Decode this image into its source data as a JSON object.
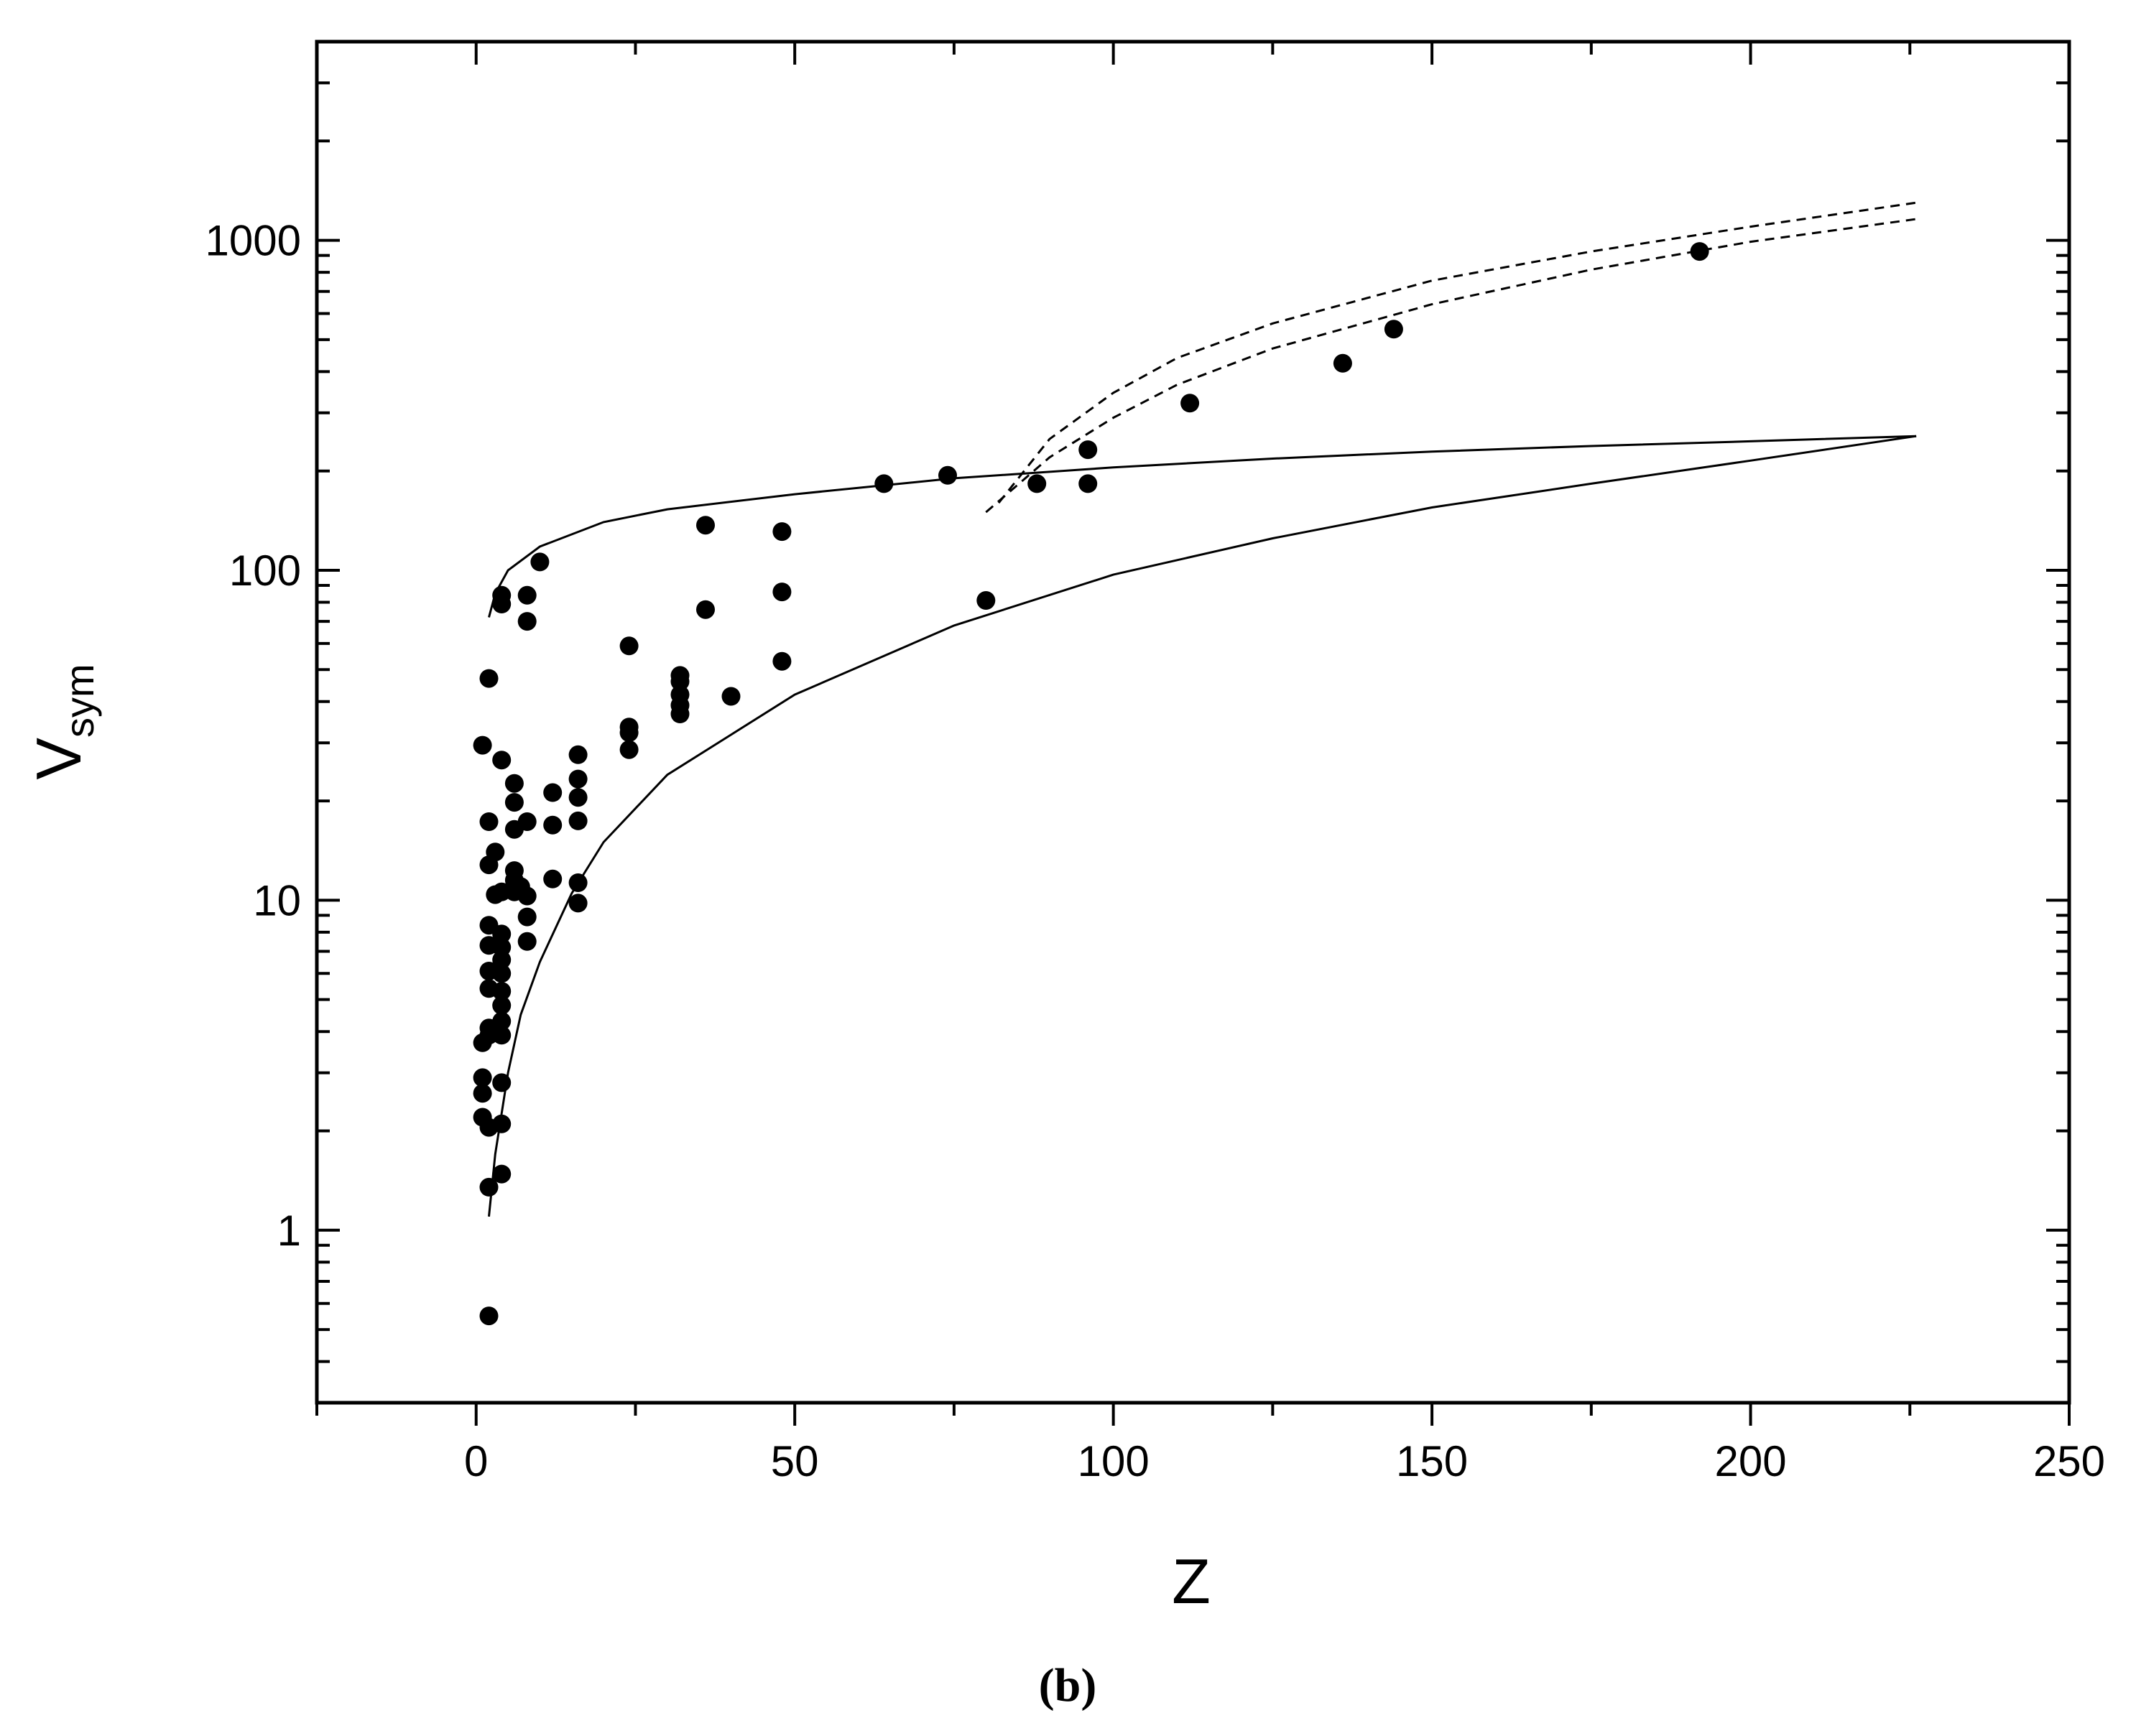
{
  "chart_data": {
    "type": "scatter",
    "xlabel": "Z",
    "ylabel": "V",
    "ylabel_sub": "sym",
    "caption": "(b)",
    "xlim": [
      -25,
      250
    ],
    "ylim": [
      0.3,
      4000
    ],
    "yscale": "log",
    "grid": false,
    "x_ticks": [
      0,
      50,
      100,
      150,
      200,
      250
    ],
    "x_tick_labels": [
      "0",
      "50",
      "100",
      "150",
      "200",
      "250"
    ],
    "y_ticks": [
      1,
      10,
      100,
      1000
    ],
    "y_tick_labels": [
      "1",
      "10",
      "100",
      "1000"
    ],
    "points": [
      [
        2,
        0.55
      ],
      [
        2,
        1.35
      ],
      [
        4,
        1.48
      ],
      [
        1,
        2.2
      ],
      [
        2,
        2.05
      ],
      [
        4,
        2.1
      ],
      [
        1,
        2.6
      ],
      [
        1,
        2.9
      ],
      [
        4,
        2.8
      ],
      [
        1,
        3.7
      ],
      [
        2,
        3.9
      ],
      [
        2,
        4.1
      ],
      [
        4,
        3.9
      ],
      [
        4,
        4.3
      ],
      [
        4,
        4.8
      ],
      [
        2,
        5.4
      ],
      [
        4,
        5.3
      ],
      [
        2,
        6.1
      ],
      [
        4,
        6.0
      ],
      [
        4,
        6.6
      ],
      [
        2,
        7.3
      ],
      [
        4,
        7.2
      ],
      [
        4,
        7.9
      ],
      [
        2,
        8.4
      ],
      [
        8,
        7.5
      ],
      [
        8,
        8.9
      ],
      [
        3,
        10.4
      ],
      [
        4,
        10.6
      ],
      [
        6,
        10.6
      ],
      [
        8,
        10.3
      ],
      [
        7,
        11.0
      ],
      [
        6,
        11.5
      ],
      [
        6,
        12.3
      ],
      [
        12,
        11.6
      ],
      [
        16,
        11.3
      ],
      [
        16,
        9.8
      ],
      [
        2,
        12.8
      ],
      [
        3,
        14.0
      ],
      [
        2,
        17.3
      ],
      [
        6,
        16.4
      ],
      [
        8,
        17.3
      ],
      [
        12,
        16.9
      ],
      [
        16,
        17.4
      ],
      [
        6,
        19.8
      ],
      [
        16,
        20.5
      ],
      [
        12,
        21.2
      ],
      [
        6,
        22.6
      ],
      [
        16,
        23.3
      ],
      [
        4,
        26.6
      ],
      [
        16,
        27.6
      ],
      [
        1,
        29.5
      ],
      [
        24,
        28.6
      ],
      [
        24,
        32.2
      ],
      [
        24,
        33.5
      ],
      [
        32,
        36.7
      ],
      [
        32,
        39.0
      ],
      [
        32,
        42.0
      ],
      [
        40,
        41.5
      ],
      [
        32,
        46.0
      ],
      [
        32,
        48.0
      ],
      [
        2,
        47.0
      ],
      [
        48,
        53.0
      ],
      [
        24,
        59.0
      ],
      [
        8,
        70.0
      ],
      [
        36,
        76.0
      ],
      [
        4,
        79.0
      ],
      [
        80,
        81.0
      ],
      [
        4,
        84.0
      ],
      [
        8,
        84.0
      ],
      [
        48,
        86.0
      ],
      [
        10,
        106.0
      ],
      [
        48,
        131.0
      ],
      [
        36,
        137.0
      ],
      [
        64,
        183.0
      ],
      [
        74,
        194.0
      ],
      [
        88,
        183.0
      ],
      [
        96,
        183.0
      ],
      [
        96,
        232.0
      ],
      [
        112,
        321.0
      ],
      [
        136,
        424.0
      ],
      [
        144,
        538.0
      ],
      [
        192,
        925.0
      ]
    ],
    "curves": [
      {
        "style": "solid",
        "x": [
          2,
          3,
          5,
          10,
          20,
          30,
          50,
          75,
          100,
          125,
          150,
          175,
          200,
          226
        ],
        "y": [
          72,
          85,
          100,
          118,
          140,
          153,
          170,
          190,
          205,
          218,
          229,
          238,
          246,
          255
        ]
      },
      {
        "style": "solid",
        "x": [
          2,
          3,
          5,
          7,
          10,
          15,
          20,
          30,
          50,
          75,
          100,
          125,
          150,
          175,
          200,
          226
        ],
        "y": [
          1.1,
          1.7,
          3.0,
          4.5,
          6.5,
          10.5,
          15,
          24,
          42,
          68,
          97,
          125,
          155,
          183,
          215,
          255
        ]
      },
      {
        "style": "dashed",
        "x": [
          80,
          90,
          100,
          110,
          125,
          150,
          175,
          200,
          226
        ],
        "y": [
          150,
          220,
          290,
          365,
          470,
          640,
          815,
          990,
          1160
        ]
      },
      {
        "style": "dashed",
        "x": [
          82,
          90,
          100,
          110,
          125,
          150,
          175,
          200,
          226
        ],
        "y": [
          160,
          250,
          345,
          440,
          560,
          755,
          925,
          1100,
          1300
        ]
      }
    ]
  }
}
